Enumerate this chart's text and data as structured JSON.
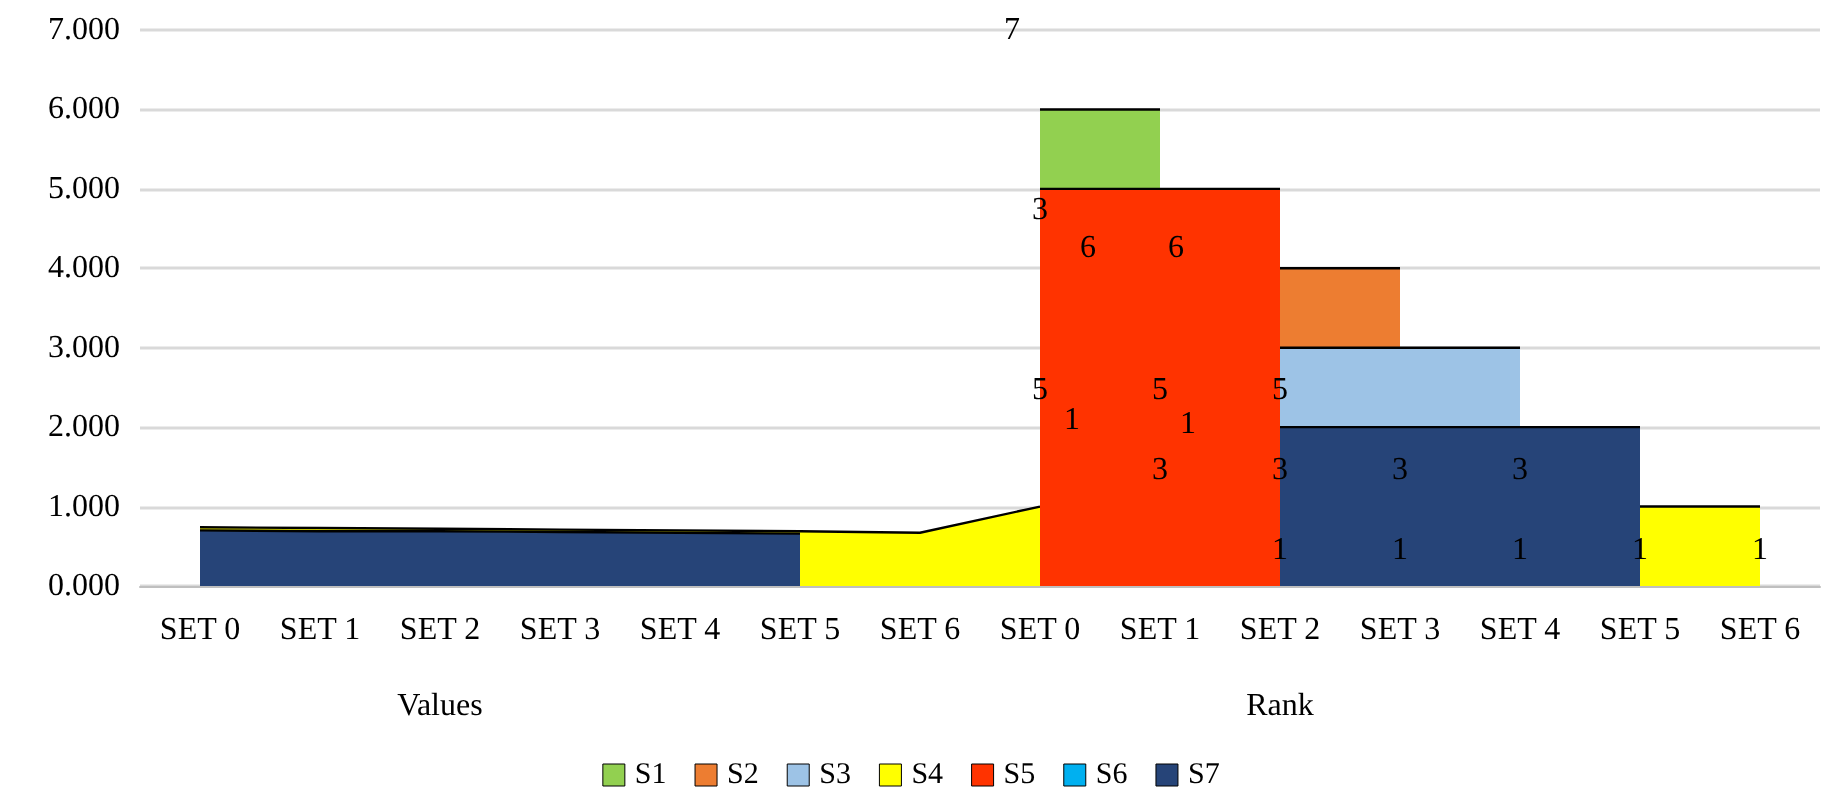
{
  "chart_data": {
    "type": "area",
    "categories": [
      "SET 0",
      "SET 1",
      "SET 2",
      "SET 3",
      "SET 4",
      "SET 5",
      "SET 6",
      "SET 0",
      "SET 1",
      "SET 2",
      "SET 3",
      "SET 4",
      "SET 5",
      "SET 6"
    ],
    "series": [
      {
        "name": "S1",
        "color": "#92d050",
        "values": [
          null,
          null,
          null,
          null,
          null,
          null,
          null,
          6,
          6,
          null,
          null,
          null,
          null,
          null
        ]
      },
      {
        "name": "S2",
        "color": "#ed7d31",
        "values": [
          null,
          null,
          null,
          null,
          null,
          null,
          null,
          null,
          null,
          4,
          4,
          null,
          null,
          null
        ]
      },
      {
        "name": "S3",
        "color": "#9dc3e6",
        "values": [
          null,
          null,
          null,
          null,
          null,
          null,
          null,
          null,
          null,
          3,
          3,
          3,
          null,
          null
        ]
      },
      {
        "name": "S4",
        "color": "#ffff00",
        "values": [
          0.74,
          0.73,
          0.72,
          0.71,
          0.7,
          0.69,
          0.67,
          1.0,
          null,
          null,
          null,
          null,
          1,
          1
        ]
      },
      {
        "name": "S5",
        "color": "#ff3300",
        "values": [
          null,
          null,
          null,
          null,
          null,
          null,
          null,
          5,
          5,
          5,
          null,
          null,
          null,
          null
        ]
      },
      {
        "name": "S6",
        "color": "#00b0f0",
        "values": [
          null,
          null,
          null,
          null,
          null,
          null,
          null,
          null,
          null,
          null,
          null,
          null,
          null,
          null
        ]
      },
      {
        "name": "S7",
        "color": "#264478",
        "values": [
          0.7,
          0.69,
          0.69,
          0.68,
          0.67,
          0.66,
          null,
          null,
          null,
          2,
          2,
          2,
          2,
          null
        ]
      }
    ],
    "ylim": [
      0,
      7
    ],
    "yticks": [
      {
        "value": 0,
        "label": "0.000"
      },
      {
        "value": 1,
        "label": "1.000"
      },
      {
        "value": 2,
        "label": "2.000"
      },
      {
        "value": 3,
        "label": "3.000"
      },
      {
        "value": 4,
        "label": "4.000"
      },
      {
        "value": 5,
        "label": "5.000"
      },
      {
        "value": 6,
        "label": "6.000"
      },
      {
        "value": 7,
        "label": "7.000"
      }
    ],
    "grid": "y",
    "legend": "bottom",
    "annotations": [
      "Values",
      "Rank",
      "7",
      "6",
      "6",
      "3",
      "5",
      "5",
      "5",
      "1",
      "1",
      "3",
      "3",
      "3",
      "3",
      "1",
      "1",
      "1",
      "1",
      "1"
    ]
  }
}
